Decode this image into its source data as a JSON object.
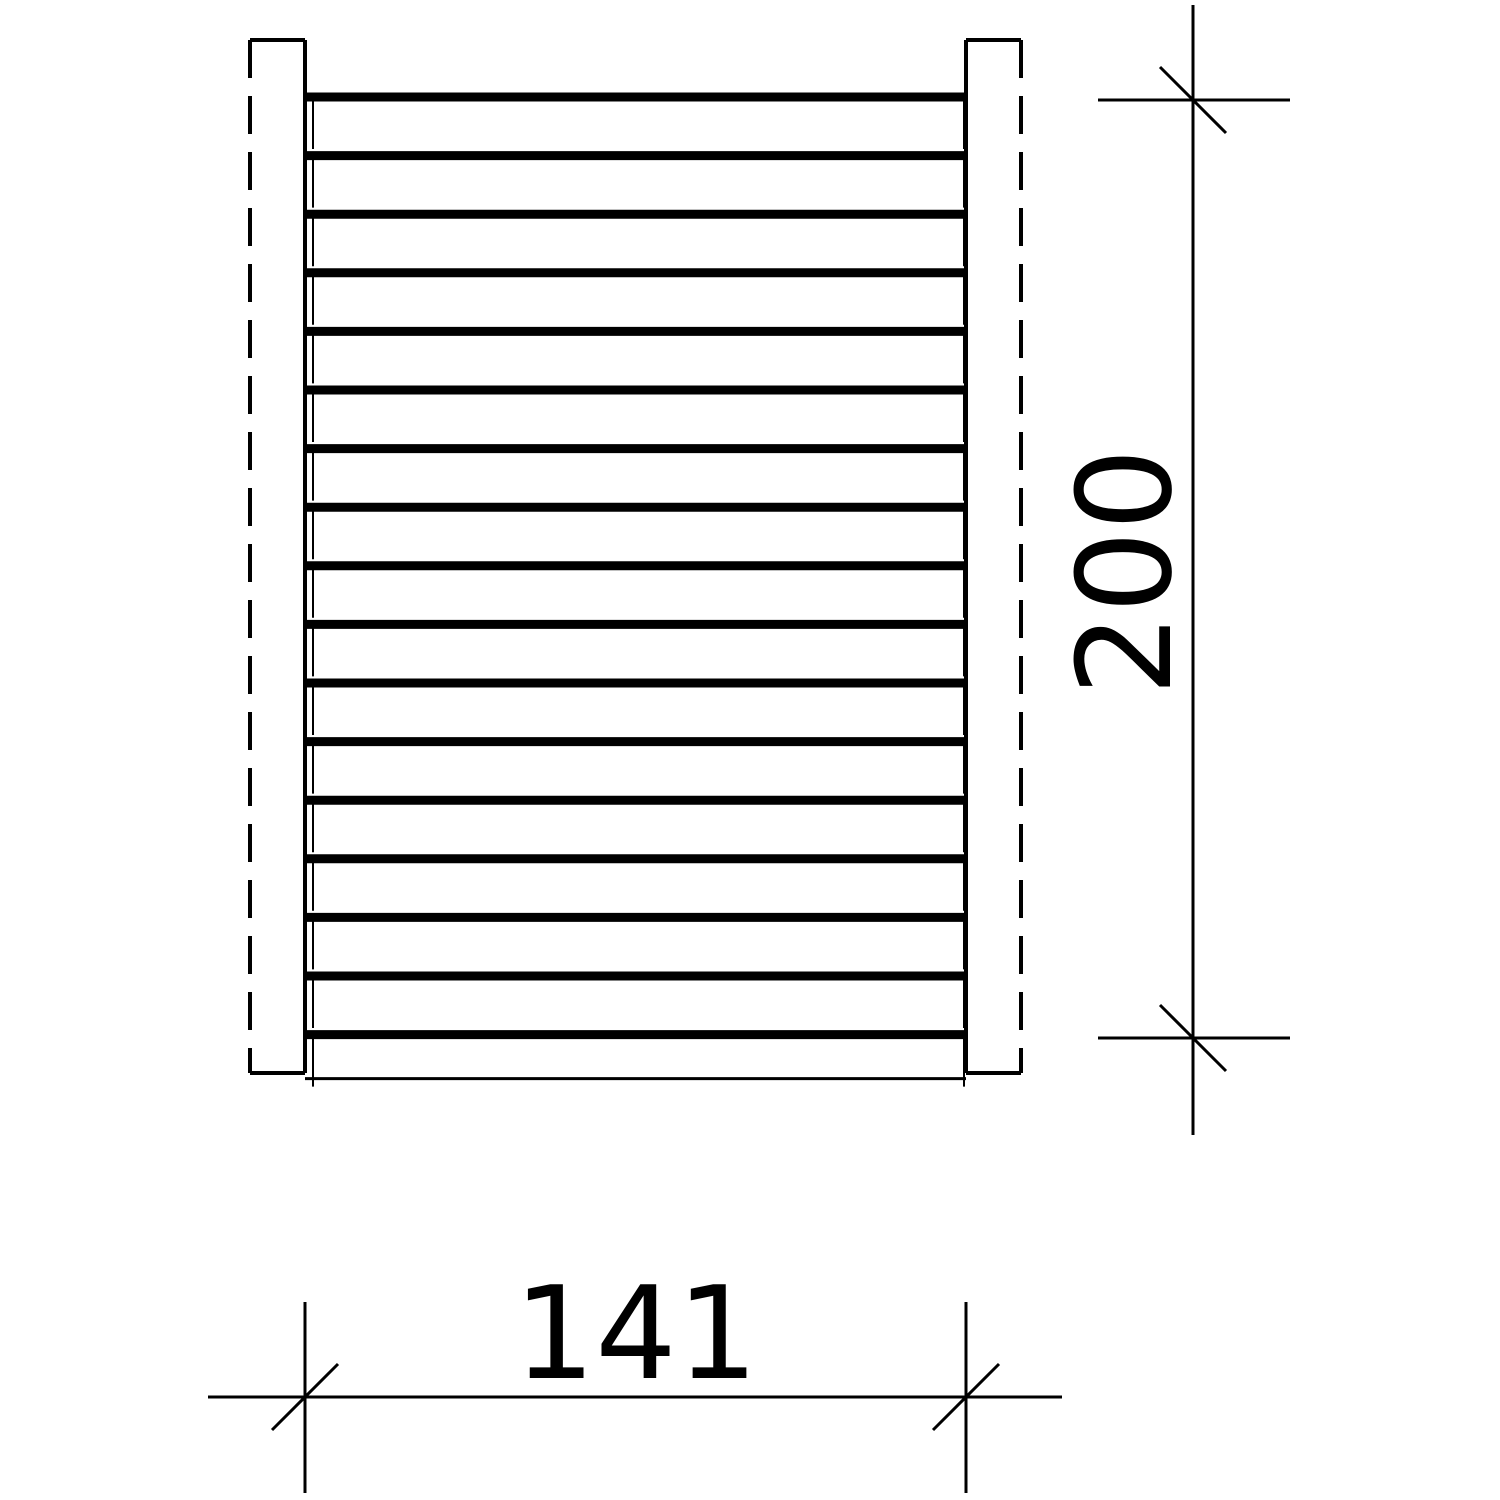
{
  "drawing": {
    "description_type": "technical-elevation",
    "line_color": "#000000",
    "background_color": "#ffffff",
    "slat_count": 17,
    "dimensions": {
      "width_label": "141",
      "height_label": "200"
    }
  }
}
